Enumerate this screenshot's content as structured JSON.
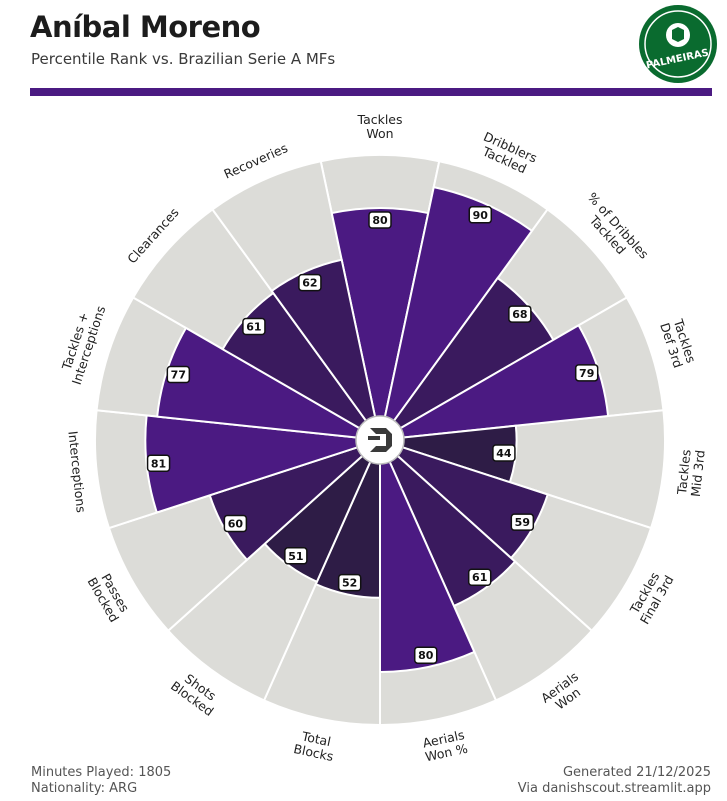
{
  "header": {
    "title": "Aníbal Moreno",
    "subtitle": "Percentile Rank vs. Brazilian Serie A MFs"
  },
  "badge": {
    "text": "PALMEIRAS",
    "color": "#0a6b2f"
  },
  "footer": {
    "minutes_label": "Minutes Played:",
    "minutes_value": "1805",
    "nationality_label": "Nationality:",
    "nationality_value": "ARG",
    "generated_label": "Generated",
    "generated_date": "21/12/2025",
    "source": "Via danishscout.streamlit.app"
  },
  "colors": {
    "accent": "#4b1a82",
    "background_slice": "#dcdcd8",
    "bar_high": "#4b1a82",
    "bar_mid": "#3a1a5e",
    "bar_low": "#2e1c46"
  },
  "chart_data": {
    "type": "polar-bar",
    "rlim": [
      0,
      100
    ],
    "categories": [
      [
        "Tackles",
        "Won"
      ],
      [
        "Dribblers",
        "Tackled"
      ],
      [
        "% of Dribbles",
        "Tackled"
      ],
      [
        "Tackles",
        "Def 3rd"
      ],
      [
        "Tackles",
        "Mid 3rd"
      ],
      [
        "Tackles",
        "Final 3rd"
      ],
      [
        "Aerials",
        "Won"
      ],
      [
        "Aerials",
        "Won %"
      ],
      [
        "Total",
        "Blocks"
      ],
      [
        "Shots",
        "Blocked"
      ],
      [
        "Passes",
        "Blocked"
      ],
      [
        "Interceptions"
      ],
      [
        "Tackles +",
        "Interceptions"
      ],
      [
        "Clearances"
      ],
      [
        "Recoveries"
      ]
    ],
    "values": [
      80,
      90,
      68,
      79,
      44,
      59,
      61,
      80,
      52,
      51,
      60,
      81,
      77,
      61,
      62
    ]
  }
}
